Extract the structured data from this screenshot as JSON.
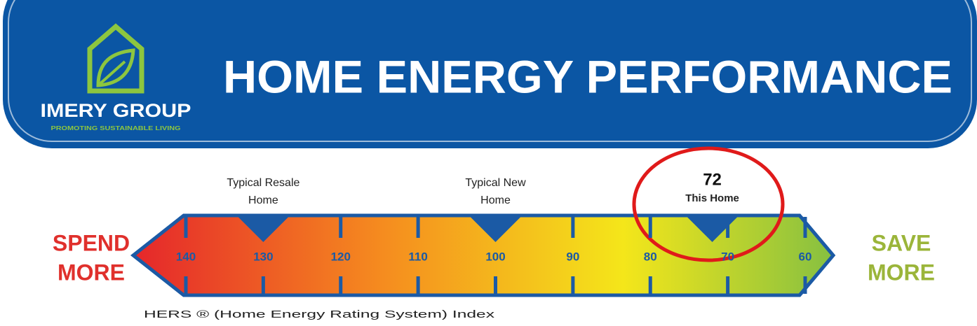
{
  "header": {
    "logo_name": "IMERY GROUP",
    "logo_tagline": "PROMOTING SUSTAINABLE LIVING",
    "title": "HOME ENERGY PERFORMANCE"
  },
  "scale": {
    "left_label": [
      "SPEND",
      "MORE"
    ],
    "right_label": [
      "SAVE",
      "MORE"
    ],
    "ticks": [
      140,
      130,
      120,
      110,
      100,
      90,
      80,
      70,
      60
    ],
    "markers": [
      {
        "label_lines": [
          "Typical Resale",
          "Home"
        ],
        "value": 130
      },
      {
        "label_lines": [
          "Typical New",
          "Home"
        ],
        "value": 100
      },
      {
        "value": 72,
        "label_lines": [
          "This Home"
        ]
      }
    ],
    "footer": "HERS ® (Home Energy Rating System) Index"
  }
}
